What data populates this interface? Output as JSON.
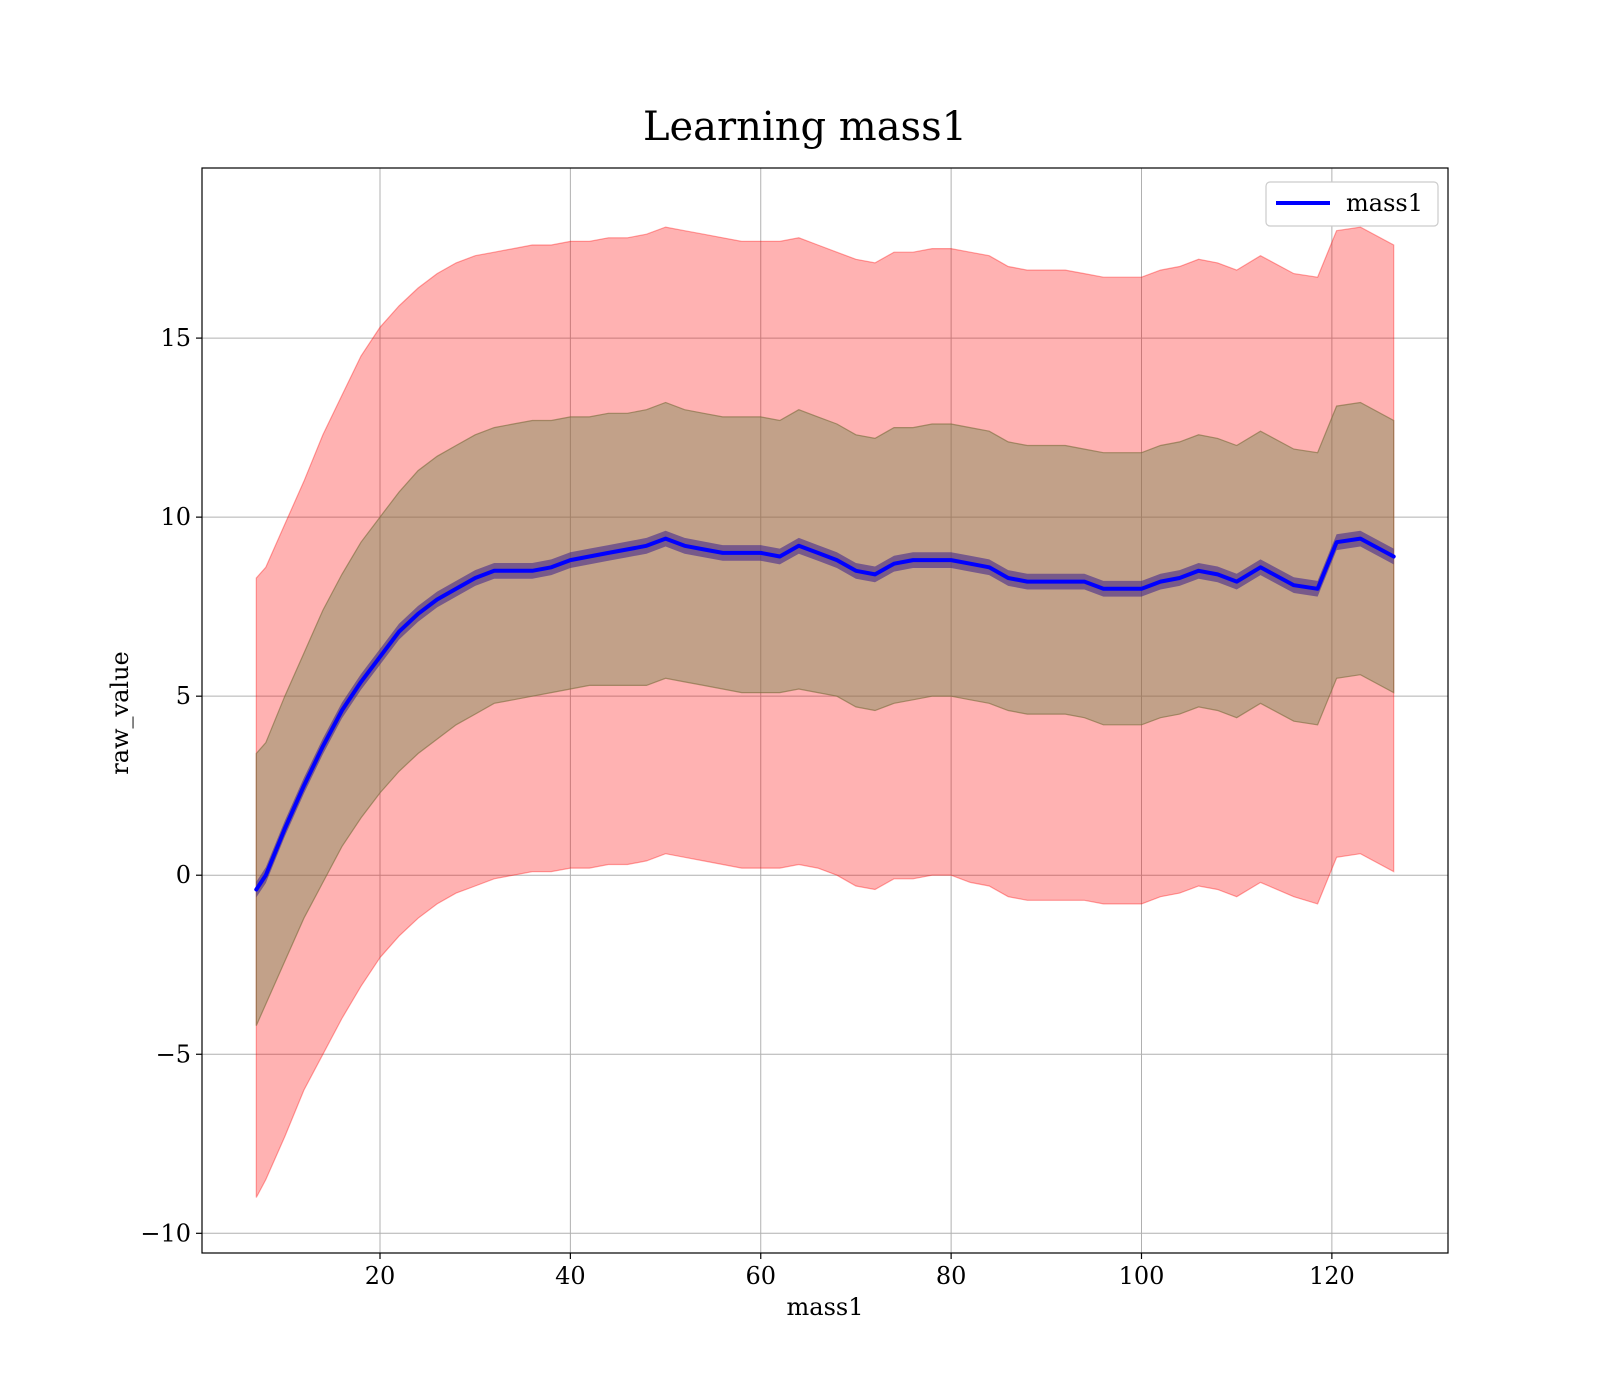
{
  "chart_data": {
    "type": "line",
    "title": "Learning mass1",
    "xlabel": "mass1",
    "ylabel": "raw_value",
    "xlim": [
      1.3,
      132.2
    ],
    "ylim": [
      -10.55,
      19.75
    ],
    "xticks": [
      20,
      40,
      60,
      80,
      100,
      120
    ],
    "yticks": [
      -10,
      -5,
      0,
      5,
      10,
      15
    ],
    "xtick_labels": [
      "20",
      "40",
      "60",
      "80",
      "100",
      "120"
    ],
    "ytick_labels": [
      "−10",
      "−5",
      "0",
      "5",
      "10",
      "15"
    ],
    "grid": true,
    "legend": {
      "position": "top-right",
      "entries": [
        "mass1"
      ]
    },
    "series": [
      {
        "name": "mass1",
        "color": "#0000ff",
        "x": [
          7.0,
          8.0,
          10.0,
          12.0,
          14.0,
          16.0,
          18.0,
          20.0,
          22.0,
          24.0,
          26.0,
          28.0,
          30.0,
          32.0,
          34.0,
          36.0,
          38.0,
          40.0,
          42.0,
          44.0,
          46.0,
          48.0,
          50.0,
          52.0,
          54.0,
          56.0,
          58.0,
          60.0,
          62.0,
          64.0,
          66.0,
          68.0,
          70.0,
          72.0,
          74.0,
          76.0,
          78.0,
          80.0,
          82.0,
          84.0,
          86.0,
          88.0,
          90.0,
          92.0,
          94.0,
          96.0,
          98.0,
          100.0,
          102.0,
          104.0,
          106.0,
          108.0,
          110.0,
          112.5,
          116.0,
          118.5,
          120.5,
          123.0,
          126.5
        ],
        "y": [
          -0.4,
          0.0,
          1.3,
          2.5,
          3.6,
          4.6,
          5.4,
          6.1,
          6.8,
          7.3,
          7.7,
          8.0,
          8.3,
          8.5,
          8.5,
          8.5,
          8.6,
          8.8,
          8.9,
          9.0,
          9.1,
          9.2,
          9.4,
          9.2,
          9.1,
          9.0,
          9.0,
          9.0,
          8.9,
          9.2,
          9.0,
          8.8,
          8.5,
          8.4,
          8.7,
          8.8,
          8.8,
          8.8,
          8.7,
          8.6,
          8.3,
          8.2,
          8.2,
          8.2,
          8.2,
          8.0,
          8.0,
          8.0,
          8.2,
          8.3,
          8.5,
          8.4,
          8.2,
          8.6,
          8.1,
          8.0,
          9.3,
          9.4,
          8.9
        ],
        "band1_lower": [
          -4.2,
          -3.6,
          -2.4,
          -1.2,
          -0.2,
          0.8,
          1.6,
          2.3,
          2.9,
          3.4,
          3.8,
          4.2,
          4.5,
          4.8,
          4.9,
          5.0,
          5.1,
          5.2,
          5.3,
          5.3,
          5.3,
          5.3,
          5.5,
          5.4,
          5.3,
          5.2,
          5.1,
          5.1,
          5.1,
          5.2,
          5.1,
          5.0,
          4.7,
          4.6,
          4.8,
          4.9,
          5.0,
          5.0,
          4.9,
          4.8,
          4.6,
          4.5,
          4.5,
          4.5,
          4.4,
          4.2,
          4.2,
          4.2,
          4.4,
          4.5,
          4.7,
          4.6,
          4.4,
          4.8,
          4.3,
          4.2,
          5.5,
          5.6,
          5.1
        ],
        "band1_upper": [
          3.4,
          3.7,
          5.0,
          6.2,
          7.4,
          8.4,
          9.3,
          10.0,
          10.7,
          11.3,
          11.7,
          12.0,
          12.3,
          12.5,
          12.6,
          12.7,
          12.7,
          12.8,
          12.8,
          12.9,
          12.9,
          13.0,
          13.2,
          13.0,
          12.9,
          12.8,
          12.8,
          12.8,
          12.7,
          13.0,
          12.8,
          12.6,
          12.3,
          12.2,
          12.5,
          12.5,
          12.6,
          12.6,
          12.5,
          12.4,
          12.1,
          12.0,
          12.0,
          12.0,
          11.9,
          11.8,
          11.8,
          11.8,
          12.0,
          12.1,
          12.3,
          12.2,
          12.0,
          12.4,
          11.9,
          11.8,
          13.1,
          13.2,
          12.7
        ],
        "band2_lower": [
          -9.0,
          -8.5,
          -7.3,
          -6.0,
          -5.0,
          -4.0,
          -3.1,
          -2.3,
          -1.7,
          -1.2,
          -0.8,
          -0.5,
          -0.3,
          -0.1,
          0.0,
          0.1,
          0.1,
          0.2,
          0.2,
          0.3,
          0.3,
          0.4,
          0.6,
          0.5,
          0.4,
          0.3,
          0.2,
          0.2,
          0.2,
          0.3,
          0.2,
          0.0,
          -0.3,
          -0.4,
          -0.1,
          -0.1,
          0.0,
          0.0,
          -0.2,
          -0.3,
          -0.6,
          -0.7,
          -0.7,
          -0.7,
          -0.7,
          -0.8,
          -0.8,
          -0.8,
          -0.6,
          -0.5,
          -0.3,
          -0.4,
          -0.6,
          -0.2,
          -0.6,
          -0.8,
          0.5,
          0.6,
          0.1
        ],
        "band2_upper": [
          8.3,
          8.6,
          9.8,
          11.0,
          12.3,
          13.4,
          14.5,
          15.3,
          15.9,
          16.4,
          16.8,
          17.1,
          17.3,
          17.4,
          17.5,
          17.6,
          17.6,
          17.7,
          17.7,
          17.8,
          17.8,
          17.9,
          18.1,
          18.0,
          17.9,
          17.8,
          17.7,
          17.7,
          17.7,
          17.8,
          17.6,
          17.4,
          17.2,
          17.1,
          17.4,
          17.4,
          17.5,
          17.5,
          17.4,
          17.3,
          17.0,
          16.9,
          16.9,
          16.9,
          16.8,
          16.7,
          16.7,
          16.7,
          16.9,
          17.0,
          17.2,
          17.1,
          16.9,
          17.3,
          16.8,
          16.7,
          18.0,
          18.1,
          17.6
        ]
      }
    ]
  }
}
